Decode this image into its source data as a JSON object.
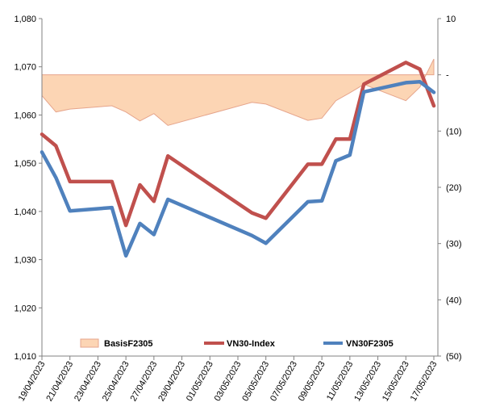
{
  "chart_data": {
    "type": "line",
    "x": [
      "19/04/2023",
      "20/04/2023",
      "21/04/2023",
      "24/04/2023",
      "25/04/2023",
      "26/04/2023",
      "27/04/2023",
      "28/04/2023",
      "04/05/2023",
      "05/05/2023",
      "08/05/2023",
      "09/05/2023",
      "10/05/2023",
      "11/05/2023",
      "12/05/2023",
      "15/05/2023",
      "16/05/2023",
      "17/05/2023"
    ],
    "x_ticks": [
      "19/04/2023",
      "21/04/2023",
      "23/04/2023",
      "25/04/2023",
      "27/04/2023",
      "29/04/2023",
      "01/05/2023",
      "03/05/2023",
      "05/05/2023",
      "07/05/2023",
      "09/05/2023",
      "11/05/2023",
      "13/05/2023",
      "15/05/2023",
      "17/05/2023"
    ],
    "y_left": {
      "min": 1010,
      "max": 1080,
      "ticks": [
        "1,010",
        "1,020",
        "1,030",
        "1,040",
        "1,050",
        "1,060",
        "1,070",
        "1,080"
      ]
    },
    "y_right": {
      "min": -50,
      "max": 10,
      "ticks": [
        "10",
        "-",
        "(10)",
        "(20)",
        "(30)",
        "(40)",
        "(50)"
      ]
    },
    "series": [
      {
        "name": "BasisF2305",
        "kind": "area",
        "axis": "right",
        "color": "#fcd5b4",
        "stroke": "#e6a58c",
        "values": [
          -3.7,
          -6.6,
          -6.1,
          -5.5,
          -6.6,
          -8.2,
          -6.9,
          -9.0,
          -4.9,
          -5.2,
          -8.1,
          -7.7,
          -4.6,
          -3.2,
          -1.7,
          -4.6,
          -2.2,
          2.8
        ]
      },
      {
        "name": "VN30-Index",
        "kind": "line",
        "axis": "left",
        "color": "#c0504d",
        "values": [
          1056.0,
          1053.6,
          1046.2,
          1046.2,
          1037.1,
          1045.5,
          1042.1,
          1051.5,
          1039.7,
          1038.6,
          1049.8,
          1049.8,
          1055.0,
          1055.0,
          1066.4,
          1070.9,
          1069.5,
          1061.9
        ]
      },
      {
        "name": "VN30F2305",
        "kind": "line",
        "axis": "left",
        "color": "#4f81bd",
        "values": [
          1052.3,
          1047.0,
          1040.1,
          1040.8,
          1030.8,
          1037.5,
          1035.2,
          1042.5,
          1035.0,
          1033.4,
          1042.0,
          1042.2,
          1050.5,
          1051.7,
          1064.8,
          1066.7,
          1066.9,
          1064.7
        ]
      }
    ],
    "legend": [
      {
        "label": "BasisF2305",
        "swatch": "area"
      },
      {
        "label": "VN30-Index",
        "swatch": "line"
      },
      {
        "label": "VN30F2305",
        "swatch": "line"
      }
    ],
    "legend_position": "bottom-inside",
    "grid": false
  }
}
